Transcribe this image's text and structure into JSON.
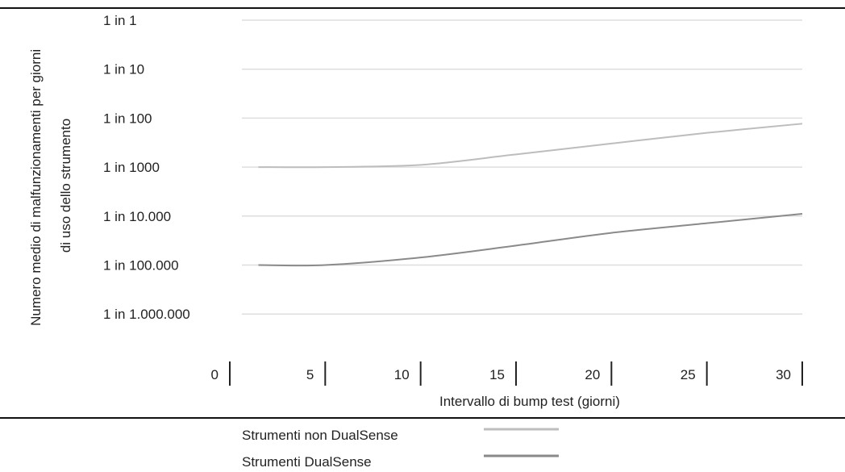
{
  "chart_data": {
    "type": "line",
    "title": "",
    "xlabel": "Intervallo di bump test (giorni)",
    "ylabel_lines": [
      "Numero medio di malfunzionamenti per giorni",
      "di uso dello strumento"
    ],
    "y_scale": "log",
    "y_tick_labels": [
      "1 in 1",
      "1 in 10",
      "1 in 100",
      "1 in 1000",
      "1 in 10.000",
      "1 in 100.000",
      "1 in 1.000.000"
    ],
    "x_ticks": [
      0,
      5,
      10,
      15,
      20,
      25,
      30
    ],
    "xlim": [
      0,
      30
    ],
    "grid": true,
    "legend_position": "bottom",
    "series": [
      {
        "name": "Strumenti non DualSense",
        "color": "#bdbdbd",
        "x": [
          1.5,
          5,
          10,
          15,
          20,
          25,
          30
        ],
        "y_one_in": [
          1000,
          1000,
          900,
          550,
          330,
          200,
          130
        ]
      },
      {
        "name": "Strumenti DualSense",
        "color": "#8a8a8a",
        "x": [
          1.5,
          5,
          10,
          15,
          20,
          25,
          30
        ],
        "y_one_in": [
          100000,
          100000,
          70000,
          40000,
          22000,
          14000,
          9000
        ]
      }
    ]
  }
}
